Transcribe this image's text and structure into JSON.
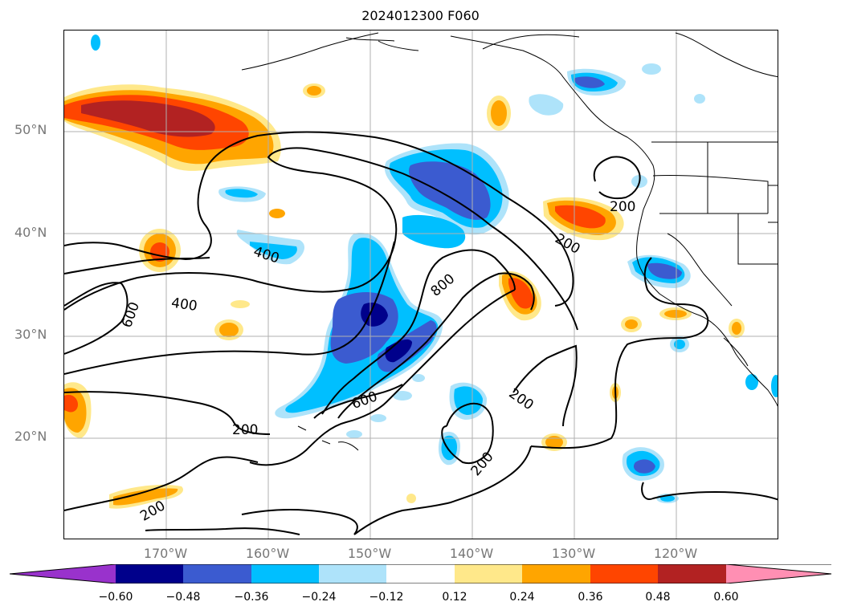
{
  "title": "2024012300 F060",
  "lat_labels": [
    "50°N",
    "40°N",
    "30°N",
    "20°N"
  ],
  "lon_labels": [
    "170°W",
    "160°W",
    "150°W",
    "140°W",
    "130°W",
    "120°W"
  ],
  "contour_labels": [
    "200",
    "200",
    "200",
    "200",
    "200",
    "200",
    "400",
    "400",
    "600",
    "600",
    "800"
  ],
  "colorbar": {
    "ticks": [
      "−0.60",
      "−0.48",
      "−0.36",
      "−0.24",
      "−0.12",
      "0.12",
      "0.24",
      "0.36",
      "0.48",
      "0.60"
    ],
    "colors": [
      "#9932cc",
      "#00008b",
      "#3b5bd0",
      "#00bfff",
      "#aee3fa",
      "#ffffff",
      "#ffe88a",
      "#ffa500",
      "#ff4500",
      "#b22222",
      "#ff8fb3"
    ]
  }
}
